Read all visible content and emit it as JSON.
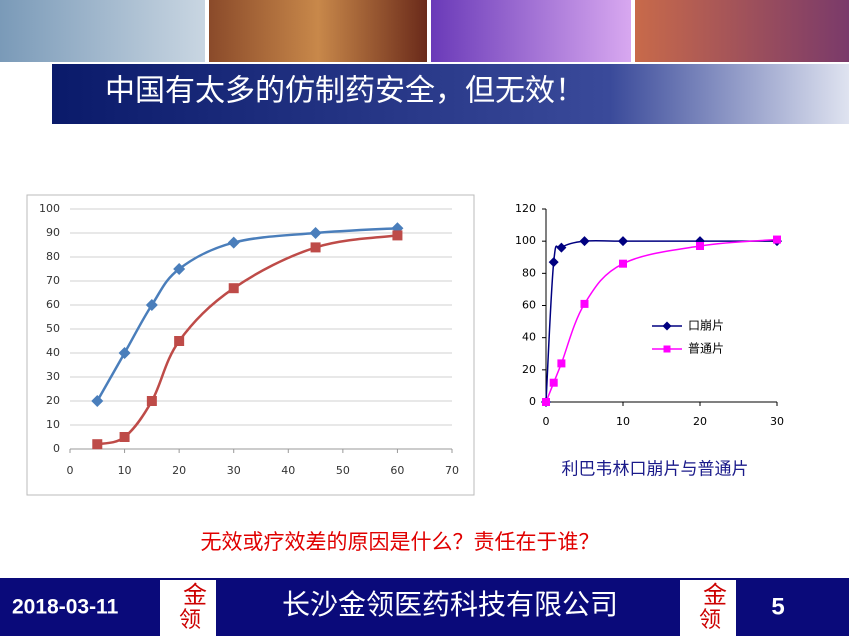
{
  "header": {
    "title": "中国有太多的仿制药安全，但无效！"
  },
  "chart_data": [
    {
      "type": "line",
      "xlim": [
        0,
        70
      ],
      "xticks": [
        0,
        10,
        20,
        30,
        40,
        50,
        60,
        70
      ],
      "ylim": [
        0,
        100
      ],
      "yticks": [
        0,
        10,
        20,
        30,
        40,
        50,
        60,
        70,
        80,
        90,
        100
      ],
      "series": [
        {
          "color": "#4a7ebb",
          "marker": "diamond",
          "x": [
            5,
            10,
            15,
            20,
            30,
            45,
            60
          ],
          "values": [
            20,
            40,
            60,
            75,
            86,
            90,
            92
          ]
        },
        {
          "color": "#be4b48",
          "marker": "square",
          "x": [
            5,
            10,
            15,
            20,
            30,
            45,
            60
          ],
          "values": [
            2,
            5,
            20,
            45,
            67,
            84,
            89
          ]
        }
      ]
    },
    {
      "type": "line",
      "caption": "利巴韦林口崩片与普通片",
      "xlim": [
        0,
        30
      ],
      "xticks": [
        0,
        10,
        20,
        30
      ],
      "ylim": [
        0,
        120
      ],
      "yticks": [
        0,
        20,
        40,
        60,
        80,
        100,
        120
      ],
      "series": [
        {
          "name": "口崩片",
          "color": "#000080",
          "marker": "diamond",
          "x": [
            0,
            1,
            2,
            5,
            10,
            20,
            30
          ],
          "values": [
            0,
            87,
            96,
            100,
            100,
            100,
            100
          ]
        },
        {
          "name": "普通片",
          "color": "#ff00ff",
          "marker": "square",
          "x": [
            0,
            1,
            2,
            5,
            10,
            20,
            30
          ],
          "values": [
            0,
            12,
            24,
            61,
            86,
            97,
            101
          ]
        }
      ]
    }
  ],
  "question": "无效或疗效差的原因是什么？责任在于谁？",
  "footer": {
    "date": "2018-03-11",
    "company": "长沙金领医药科技有限公司",
    "logo": [
      "金",
      "领"
    ],
    "page": "5"
  }
}
